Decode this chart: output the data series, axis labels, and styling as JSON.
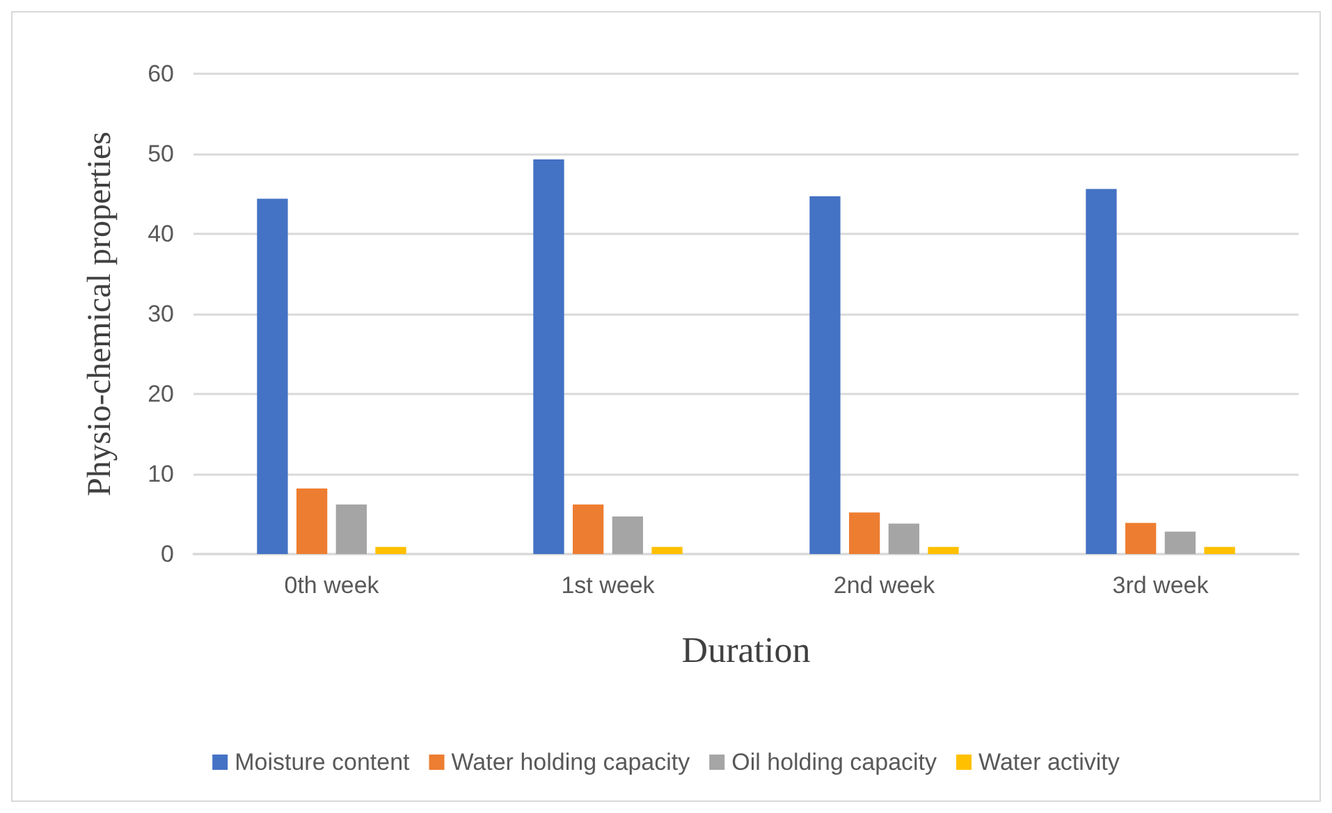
{
  "chart_data": {
    "type": "bar",
    "xlabel": "Duration",
    "ylabel": "Physio-chemical properties",
    "categories": [
      "0th week",
      "1st week",
      "2nd week",
      "3rd week"
    ],
    "series": [
      {
        "name": "Moisture content",
        "color": "#4472c4",
        "values": [
          44.4,
          49.3,
          44.7,
          45.6
        ]
      },
      {
        "name": "Water holding capacity",
        "color": "#ed7d31",
        "values": [
          8.2,
          6.2,
          5.2,
          3.9
        ]
      },
      {
        "name": "Oil holding capacity",
        "color": "#a5a5a5",
        "values": [
          6.2,
          4.7,
          3.8,
          2.8
        ]
      },
      {
        "name": "Water activity",
        "color": "#ffc000",
        "values": [
          0.9,
          0.9,
          0.9,
          0.9
        ]
      }
    ],
    "ylim": [
      0,
      60
    ],
    "yticks": [
      0,
      10,
      20,
      30,
      40,
      50,
      60
    ],
    "grid": "y",
    "legend": "bottom"
  }
}
